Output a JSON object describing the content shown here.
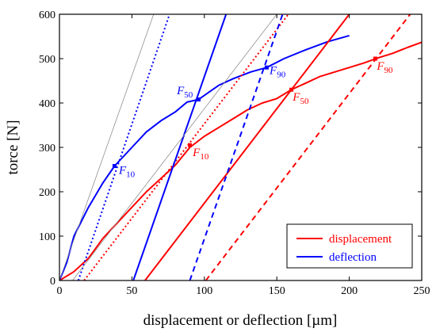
{
  "chart_data": {
    "type": "line",
    "xlabel": "displacement or deflection   [µm]",
    "ylabel": "torce   [N]",
    "xlim": [
      0,
      250
    ],
    "ylim": [
      0,
      600
    ],
    "xticks": [
      "0",
      "50",
      "100",
      "150",
      "200",
      "250"
    ],
    "yticks": [
      "0",
      "100",
      "200",
      "300",
      "400",
      "500",
      "600"
    ],
    "legend": {
      "placement": "bottom-right",
      "entries": [
        {
          "label": "displacement",
          "color": "#ff0000"
        },
        {
          "label": "deflection",
          "color": "#0000ff"
        }
      ]
    },
    "series": [
      {
        "name": "displacement",
        "color": "#ff0000",
        "style": "solid",
        "points": [
          [
            0,
            0
          ],
          [
            10,
            20
          ],
          [
            20,
            50
          ],
          [
            30,
            95
          ],
          [
            40,
            130
          ],
          [
            50,
            165
          ],
          [
            60,
            200
          ],
          [
            70,
            230
          ],
          [
            80,
            260
          ],
          [
            90,
            300
          ],
          [
            100,
            325
          ],
          [
            110,
            345
          ],
          [
            120,
            365
          ],
          [
            130,
            385
          ],
          [
            140,
            400
          ],
          [
            150,
            410
          ],
          [
            160,
            430
          ],
          [
            170,
            445
          ],
          [
            180,
            460
          ],
          [
            190,
            470
          ],
          [
            200,
            480
          ],
          [
            210,
            490
          ],
          [
            220,
            502
          ],
          [
            230,
            512
          ],
          [
            240,
            525
          ],
          [
            250,
            537
          ]
        ]
      },
      {
        "name": "deflection",
        "color": "#0000ff",
        "style": "solid",
        "points": [
          [
            0,
            0
          ],
          [
            5,
            40
          ],
          [
            10,
            100
          ],
          [
            20,
            165
          ],
          [
            30,
            220
          ],
          [
            38,
            258
          ],
          [
            50,
            300
          ],
          [
            60,
            335
          ],
          [
            70,
            360
          ],
          [
            80,
            380
          ],
          [
            88,
            402
          ],
          [
            96,
            408
          ],
          [
            110,
            440
          ],
          [
            120,
            455
          ],
          [
            132,
            470
          ],
          [
            143,
            480
          ],
          [
            155,
            500
          ],
          [
            170,
            520
          ],
          [
            185,
            538
          ],
          [
            200,
            552
          ]
        ]
      },
      {
        "color": "#ff0000",
        "style": "solid",
        "points": [
          [
            59,
            0
          ],
          [
            200,
            600
          ]
        ]
      },
      {
        "color": "#ff0000",
        "style": "dashed",
        "points": [
          [
            101,
            0
          ],
          [
            242,
            600
          ]
        ]
      },
      {
        "color": "#ff0000",
        "style": "dotted",
        "points": [
          [
            17,
            0
          ],
          [
            158,
            600
          ]
        ]
      },
      {
        "color": "#0000ff",
        "style": "solid",
        "points": [
          [
            51,
            0
          ],
          [
            115,
            600
          ]
        ]
      },
      {
        "color": "#0000ff",
        "style": "dashed",
        "points": [
          [
            90,
            0
          ],
          [
            154,
            600
          ]
        ]
      },
      {
        "color": "#0000ff",
        "style": "dotted",
        "points": [
          [
            13,
            0
          ],
          [
            76,
            600
          ]
        ]
      },
      {
        "color": "#909090",
        "style": "thin",
        "points": [
          [
            0,
            0
          ],
          [
            65,
            600
          ]
        ]
      },
      {
        "color": "#909090",
        "style": "thin",
        "points": [
          [
            9,
            0
          ],
          [
            150,
            600
          ]
        ]
      }
    ],
    "markers": [
      {
        "x": 38,
        "y": 258,
        "color": "#0000ff"
      },
      {
        "x": 96,
        "y": 408,
        "color": "#0000ff"
      },
      {
        "x": 143,
        "y": 480,
        "color": "#0000ff"
      },
      {
        "x": 90,
        "y": 305,
        "color": "#ff0000"
      },
      {
        "x": 160,
        "y": 430,
        "color": "#ff0000"
      },
      {
        "x": 218,
        "y": 500,
        "color": "#ff0000"
      }
    ],
    "annotations": [
      {
        "main": "F",
        "sub": "10",
        "color": "#0000ff",
        "x": 41,
        "y": 240
      },
      {
        "main": "F",
        "sub": "50",
        "color": "#0000ff",
        "x": 81,
        "y": 420
      },
      {
        "main": "F",
        "sub": "90",
        "color": "#0000ff",
        "x": 145,
        "y": 465
      },
      {
        "main": "F",
        "sub": "10",
        "color": "#ff0000",
        "x": 92,
        "y": 280
      },
      {
        "main": "F",
        "sub": "50",
        "color": "#ff0000",
        "x": 161,
        "y": 405
      },
      {
        "main": "F",
        "sub": "90",
        "color": "#ff0000",
        "x": 219,
        "y": 475
      }
    ]
  }
}
